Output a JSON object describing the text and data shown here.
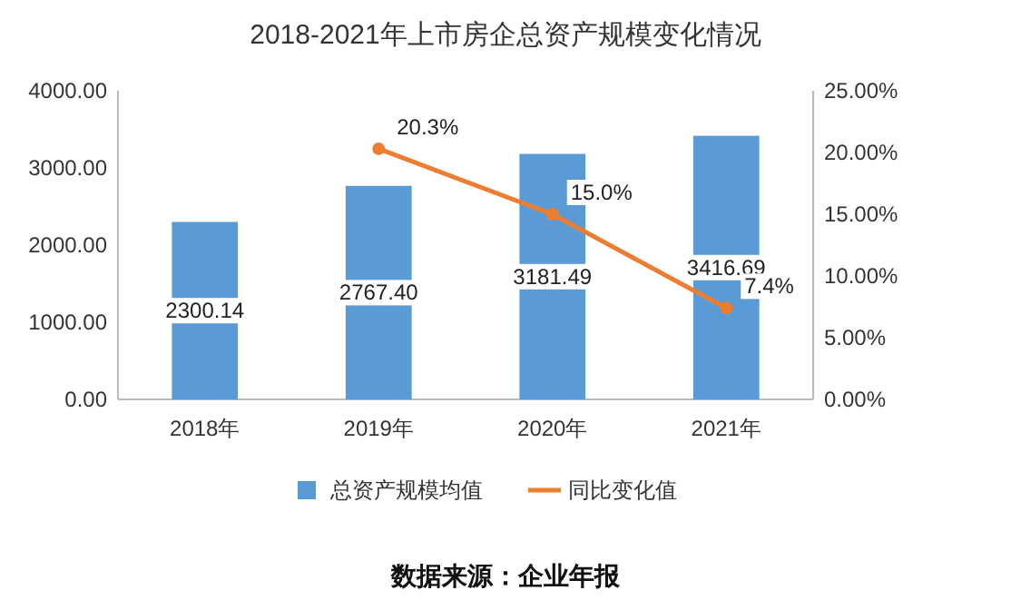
{
  "chart_data": {
    "type": "bar",
    "title": "2018-2021年上市房企总资产规模变化情况",
    "categories": [
      "2018年",
      "2019年",
      "2020年",
      "2021年"
    ],
    "series": [
      {
        "name": "总资产规模均值",
        "color": "#5b9bd5",
        "values": [
          2300.14,
          2767.4,
          3181.49,
          3416.69
        ],
        "value_labels": [
          "2300.14",
          "2767.40",
          "3181.49",
          "3416.69"
        ]
      },
      {
        "name": "同比变化值",
        "type": "line",
        "axis": "y2",
        "color": "#ed7d31",
        "values": [
          null,
          20.3,
          15.0,
          7.4
        ],
        "value_labels": [
          null,
          "20.3%",
          "15.0%",
          "7.4%"
        ]
      }
    ],
    "ylim": [
      0,
      4000
    ],
    "yticks": [
      {
        "value": 0,
        "label": "0.00"
      },
      {
        "value": 1000,
        "label": "1000.00"
      },
      {
        "value": 2000,
        "label": "2000.00"
      },
      {
        "value": 3000,
        "label": "3000.00"
      },
      {
        "value": 4000,
        "label": "4000.00"
      }
    ],
    "y2lim": [
      0,
      25
    ],
    "y2ticks": [
      {
        "value": 0,
        "label": "0.00%"
      },
      {
        "value": 5,
        "label": "5.00%"
      },
      {
        "value": 10,
        "label": "10.00%"
      },
      {
        "value": 15,
        "label": "15.00%"
      },
      {
        "value": 20,
        "label": "20.00%"
      },
      {
        "value": 25,
        "label": "25.00%"
      }
    ],
    "legend": "bottom",
    "marker": "circle",
    "annotations": [
      "数据来源：企业年报"
    ]
  }
}
